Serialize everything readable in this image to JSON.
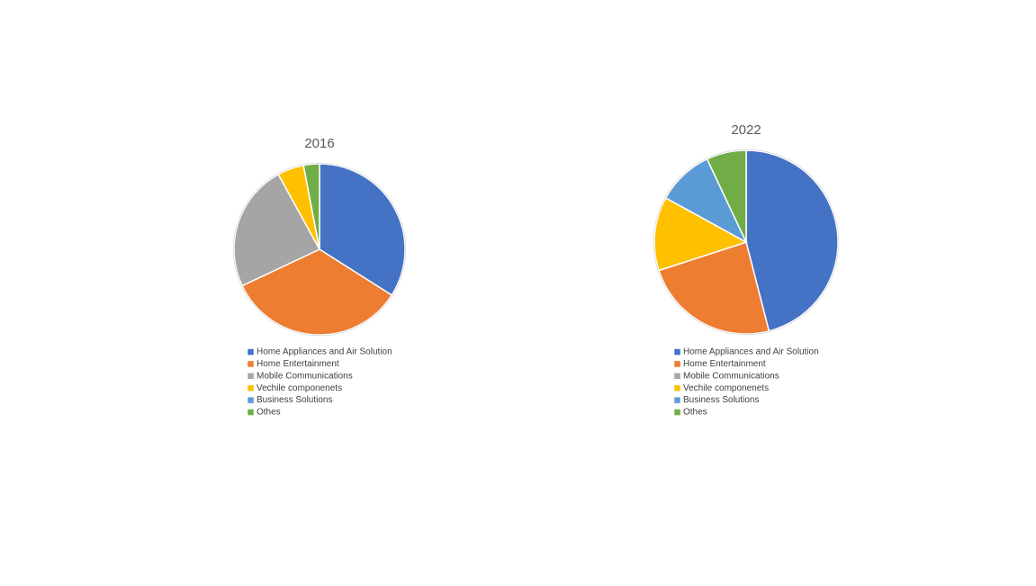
{
  "chart_data": [
    {
      "type": "pie",
      "title": "2016",
      "categories": [
        "Home Appliances and Air Solution",
        "Home Entertainment",
        "Mobile Communications",
        "Vechile componenets",
        "Business Solutions",
        "Othes"
      ],
      "values": [
        34,
        34,
        24,
        5,
        0,
        3
      ],
      "colors": [
        "#4472c4",
        "#ed7d31",
        "#a5a5a5",
        "#ffc000",
        "#5b9bd5",
        "#70ad47"
      ],
      "legend": "bottom"
    },
    {
      "type": "pie",
      "title": "2022",
      "categories": [
        "Home Appliances and Air Solution",
        "Home Entertainment",
        "Mobile Communications",
        "Vechile componenets",
        "Business Solutions",
        "Othes"
      ],
      "values": [
        46,
        24,
        0,
        13,
        10,
        7
      ],
      "colors": [
        "#4472c4",
        "#ed7d31",
        "#a5a5a5",
        "#ffc000",
        "#5b9bd5",
        "#70ad47"
      ],
      "legend": "bottom"
    }
  ]
}
